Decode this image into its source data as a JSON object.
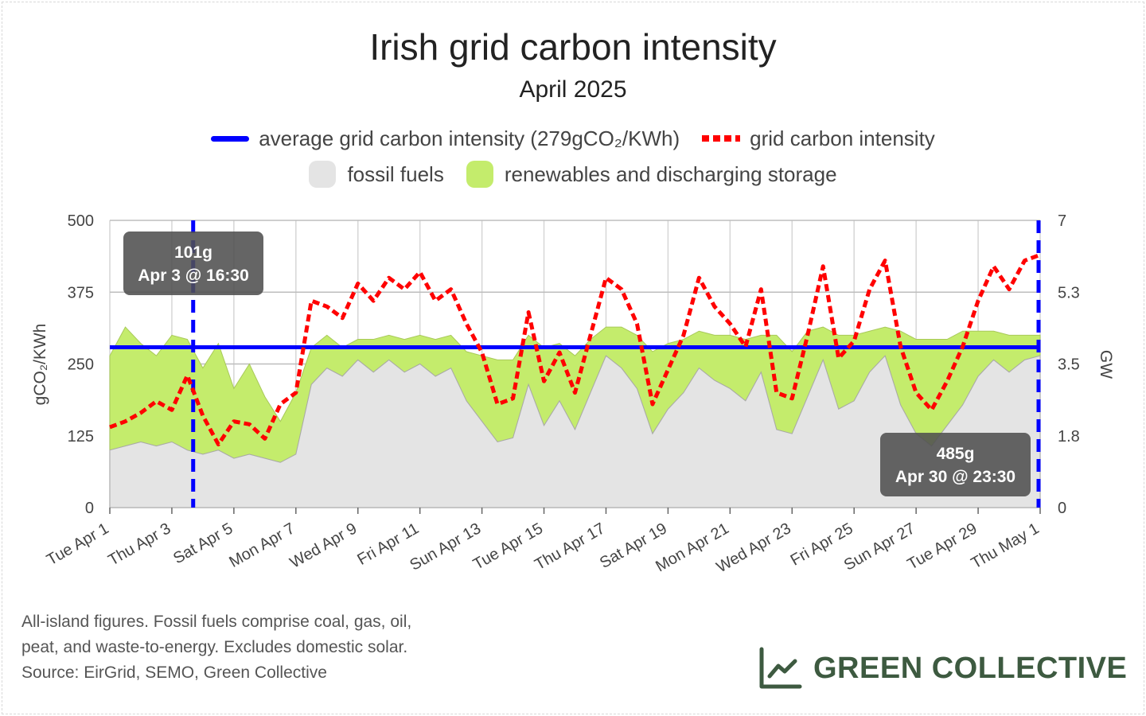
{
  "title": "Irish grid carbon intensity",
  "subtitle": "April 2025",
  "legend": {
    "average": "average grid carbon intensity (279gCO₂/KWh)",
    "intensity": "grid carbon intensity",
    "fossil": "fossil fuels",
    "renewables": "renewables and discharging storage"
  },
  "colors": {
    "average": "#0000ff",
    "intensity": "#ff0000",
    "fossil": "#e4e4e4",
    "renewables": "#c4ec6c",
    "logo": "#3d5a40"
  },
  "tooltips": {
    "min": {
      "value": "101g",
      "time": "Apr 3 @ 16:30"
    },
    "max": {
      "value": "485g",
      "time": "Apr 30 @ 23:30"
    }
  },
  "footnote": [
    "All-island figures. Fossil fuels comprise coal, gas, oil,",
    "peat, and waste-to-energy. Excludes domestic solar.",
    "Source: EirGrid, SEMO, Green Collective"
  ],
  "logo": {
    "text": "GREEN COLLECTIVE",
    "icon": "line-chart-icon"
  },
  "chart_data": {
    "type": "line",
    "x_unit": "date",
    "x_tick_labels": [
      "Tue Apr 1",
      "Thu Apr 3",
      "Sat Apr 5",
      "Mon Apr 7",
      "Wed Apr 9",
      "Fri Apr 11",
      "Sun Apr 13",
      "Tue Apr 15",
      "Thu Apr 17",
      "Sat Apr 19",
      "Mon Apr 21",
      "Wed Apr 23",
      "Fri Apr 25",
      "Sun Apr 27",
      "Tue Apr 29",
      "Thu May 1"
    ],
    "xlim": [
      "2025-04-01",
      "2025-05-01"
    ],
    "ylabel": "gCO₂/KWh",
    "ylim": [
      0,
      500
    ],
    "yticks": [
      0,
      125,
      250,
      375,
      500
    ],
    "y2label": "GW",
    "y2lim": [
      0,
      7
    ],
    "y2tick_labels": [
      "0",
      "1.8",
      "3.5",
      "5.3",
      "7"
    ],
    "grid": true,
    "legend_position": "top",
    "average": 279,
    "min_marker": {
      "x": "2025-04-03 16:30",
      "y": 101
    },
    "max_marker": {
      "x": "2025-04-30 23:30",
      "y": 485
    },
    "series": [
      {
        "name": "grid carbon intensity",
        "axis": "left",
        "style": "dashed",
        "x": [
          "2025-04-01 00:00",
          "2025-04-01 12:00",
          "2025-04-02 00:00",
          "2025-04-02 12:00",
          "2025-04-03 00:00",
          "2025-04-03 12:00",
          "2025-04-04 00:00",
          "2025-04-04 12:00",
          "2025-04-05 00:00",
          "2025-04-05 12:00",
          "2025-04-06 00:00",
          "2025-04-06 12:00",
          "2025-04-07 00:00",
          "2025-04-07 12:00",
          "2025-04-08 00:00",
          "2025-04-08 12:00",
          "2025-04-09 00:00",
          "2025-04-09 12:00",
          "2025-04-10 00:00",
          "2025-04-10 12:00",
          "2025-04-11 00:00",
          "2025-04-11 12:00",
          "2025-04-12 00:00",
          "2025-04-12 12:00",
          "2025-04-13 00:00",
          "2025-04-13 12:00",
          "2025-04-14 00:00",
          "2025-04-14 12:00",
          "2025-04-15 00:00",
          "2025-04-15 12:00",
          "2025-04-16 00:00",
          "2025-04-16 12:00",
          "2025-04-17 00:00",
          "2025-04-17 12:00",
          "2025-04-18 00:00",
          "2025-04-18 12:00",
          "2025-04-19 00:00",
          "2025-04-19 12:00",
          "2025-04-20 00:00",
          "2025-04-20 12:00",
          "2025-04-21 00:00",
          "2025-04-21 12:00",
          "2025-04-22 00:00",
          "2025-04-22 12:00",
          "2025-04-23 00:00",
          "2025-04-23 12:00",
          "2025-04-24 00:00",
          "2025-04-24 12:00",
          "2025-04-25 00:00",
          "2025-04-25 12:00",
          "2025-04-26 00:00",
          "2025-04-26 12:00",
          "2025-04-27 00:00",
          "2025-04-27 12:00",
          "2025-04-28 00:00",
          "2025-04-28 12:00",
          "2025-04-29 00:00",
          "2025-04-29 12:00",
          "2025-04-30 00:00",
          "2025-04-30 12:00",
          "2025-05-01 00:00"
        ],
        "values": [
          140,
          150,
          165,
          185,
          170,
          230,
          160,
          110,
          150,
          145,
          120,
          180,
          200,
          360,
          350,
          330,
          390,
          360,
          400,
          380,
          410,
          360,
          380,
          320,
          270,
          180,
          190,
          340,
          220,
          270,
          200,
          300,
          400,
          380,
          320,
          180,
          240,
          300,
          400,
          350,
          320,
          280,
          380,
          200,
          190,
          300,
          420,
          260,
          290,
          380,
          430,
          280,
          200,
          170,
          220,
          280,
          360,
          420,
          380,
          430,
          440
        ]
      },
      {
        "name": "fossil fuels",
        "axis": "right",
        "unit": "GW",
        "x": [
          "2025-04-01 00:00",
          "2025-04-01 12:00",
          "2025-04-02 00:00",
          "2025-04-02 12:00",
          "2025-04-03 00:00",
          "2025-04-03 12:00",
          "2025-04-04 00:00",
          "2025-04-04 12:00",
          "2025-04-05 00:00",
          "2025-04-05 12:00",
          "2025-04-06 00:00",
          "2025-04-06 12:00",
          "2025-04-07 00:00",
          "2025-04-07 12:00",
          "2025-04-08 00:00",
          "2025-04-08 12:00",
          "2025-04-09 00:00",
          "2025-04-09 12:00",
          "2025-04-10 00:00",
          "2025-04-10 12:00",
          "2025-04-11 00:00",
          "2025-04-11 12:00",
          "2025-04-12 00:00",
          "2025-04-12 12:00",
          "2025-04-13 00:00",
          "2025-04-13 12:00",
          "2025-04-14 00:00",
          "2025-04-14 12:00",
          "2025-04-15 00:00",
          "2025-04-15 12:00",
          "2025-04-16 00:00",
          "2025-04-16 12:00",
          "2025-04-17 00:00",
          "2025-04-17 12:00",
          "2025-04-18 00:00",
          "2025-04-18 12:00",
          "2025-04-19 00:00",
          "2025-04-19 12:00",
          "2025-04-20 00:00",
          "2025-04-20 12:00",
          "2025-04-21 00:00",
          "2025-04-21 12:00",
          "2025-04-22 00:00",
          "2025-04-22 12:00",
          "2025-04-23 00:00",
          "2025-04-23 12:00",
          "2025-04-24 00:00",
          "2025-04-24 12:00",
          "2025-04-25 00:00",
          "2025-04-25 12:00",
          "2025-04-26 00:00",
          "2025-04-26 12:00",
          "2025-04-27 00:00",
          "2025-04-27 12:00",
          "2025-04-28 00:00",
          "2025-04-28 12:00",
          "2025-04-29 00:00",
          "2025-04-29 12:00",
          "2025-04-30 00:00",
          "2025-04-30 12:00",
          "2025-05-01 00:00"
        ],
        "values": [
          1.4,
          1.5,
          1.6,
          1.5,
          1.6,
          1.4,
          1.3,
          1.4,
          1.2,
          1.3,
          1.2,
          1.1,
          1.3,
          3.0,
          3.4,
          3.2,
          3.6,
          3.3,
          3.6,
          3.3,
          3.5,
          3.2,
          3.4,
          2.6,
          2.1,
          1.6,
          1.7,
          3.0,
          2.0,
          2.6,
          1.9,
          2.8,
          3.7,
          3.4,
          2.9,
          1.8,
          2.4,
          2.8,
          3.4,
          3.1,
          2.9,
          2.6,
          3.3,
          1.9,
          1.8,
          2.7,
          3.6,
          2.4,
          2.6,
          3.3,
          3.7,
          2.5,
          1.8,
          1.5,
          2.0,
          2.5,
          3.2,
          3.6,
          3.3,
          3.6,
          3.7
        ]
      },
      {
        "name": "renewables and discharging storage",
        "axis": "right",
        "unit": "GW",
        "stacked": true,
        "x": [
          "2025-04-01 00:00",
          "2025-04-01 12:00",
          "2025-04-02 00:00",
          "2025-04-02 12:00",
          "2025-04-03 00:00",
          "2025-04-03 12:00",
          "2025-04-04 00:00",
          "2025-04-04 12:00",
          "2025-04-05 00:00",
          "2025-04-05 12:00",
          "2025-04-06 00:00",
          "2025-04-06 12:00",
          "2025-04-07 00:00",
          "2025-04-07 12:00",
          "2025-04-08 00:00",
          "2025-04-08 12:00",
          "2025-04-09 00:00",
          "2025-04-09 12:00",
          "2025-04-10 00:00",
          "2025-04-10 12:00",
          "2025-04-11 00:00",
          "2025-04-11 12:00",
          "2025-04-12 00:00",
          "2025-04-12 12:00",
          "2025-04-13 00:00",
          "2025-04-13 12:00",
          "2025-04-14 00:00",
          "2025-04-14 12:00",
          "2025-04-15 00:00",
          "2025-04-15 12:00",
          "2025-04-16 00:00",
          "2025-04-16 12:00",
          "2025-04-17 00:00",
          "2025-04-17 12:00",
          "2025-04-18 00:00",
          "2025-04-18 12:00",
          "2025-04-19 00:00",
          "2025-04-19 12:00",
          "2025-04-20 00:00",
          "2025-04-20 12:00",
          "2025-04-21 00:00",
          "2025-04-21 12:00",
          "2025-04-22 00:00",
          "2025-04-22 12:00",
          "2025-04-23 00:00",
          "2025-04-23 12:00",
          "2025-04-24 00:00",
          "2025-04-24 12:00",
          "2025-04-25 00:00",
          "2025-04-25 12:00",
          "2025-04-26 00:00",
          "2025-04-26 12:00",
          "2025-04-27 00:00",
          "2025-04-27 12:00",
          "2025-04-28 00:00",
          "2025-04-28 12:00",
          "2025-04-29 00:00",
          "2025-04-29 12:00",
          "2025-04-30 00:00",
          "2025-04-30 12:00",
          "2025-05-01 00:00"
        ],
        "values": [
          2.3,
          2.9,
          2.4,
          2.2,
          2.6,
          2.7,
          2.1,
          2.6,
          1.7,
          2.2,
          1.5,
          1.0,
          1.5,
          0.9,
          0.8,
          0.7,
          0.5,
          0.8,
          0.6,
          0.8,
          0.7,
          0.9,
          0.8,
          1.2,
          1.6,
          2.0,
          1.9,
          1.2,
          1.9,
          1.4,
          1.8,
          1.3,
          0.7,
          1.0,
          1.3,
          2.0,
          1.6,
          1.3,
          0.9,
          1.1,
          1.3,
          1.5,
          0.9,
          2.3,
          2.0,
          1.6,
          0.8,
          1.8,
          1.6,
          1.0,
          0.7,
          1.8,
          2.3,
          2.6,
          2.1,
          1.8,
          1.1,
          0.7,
          0.9,
          0.6,
          0.5
        ]
      }
    ]
  }
}
